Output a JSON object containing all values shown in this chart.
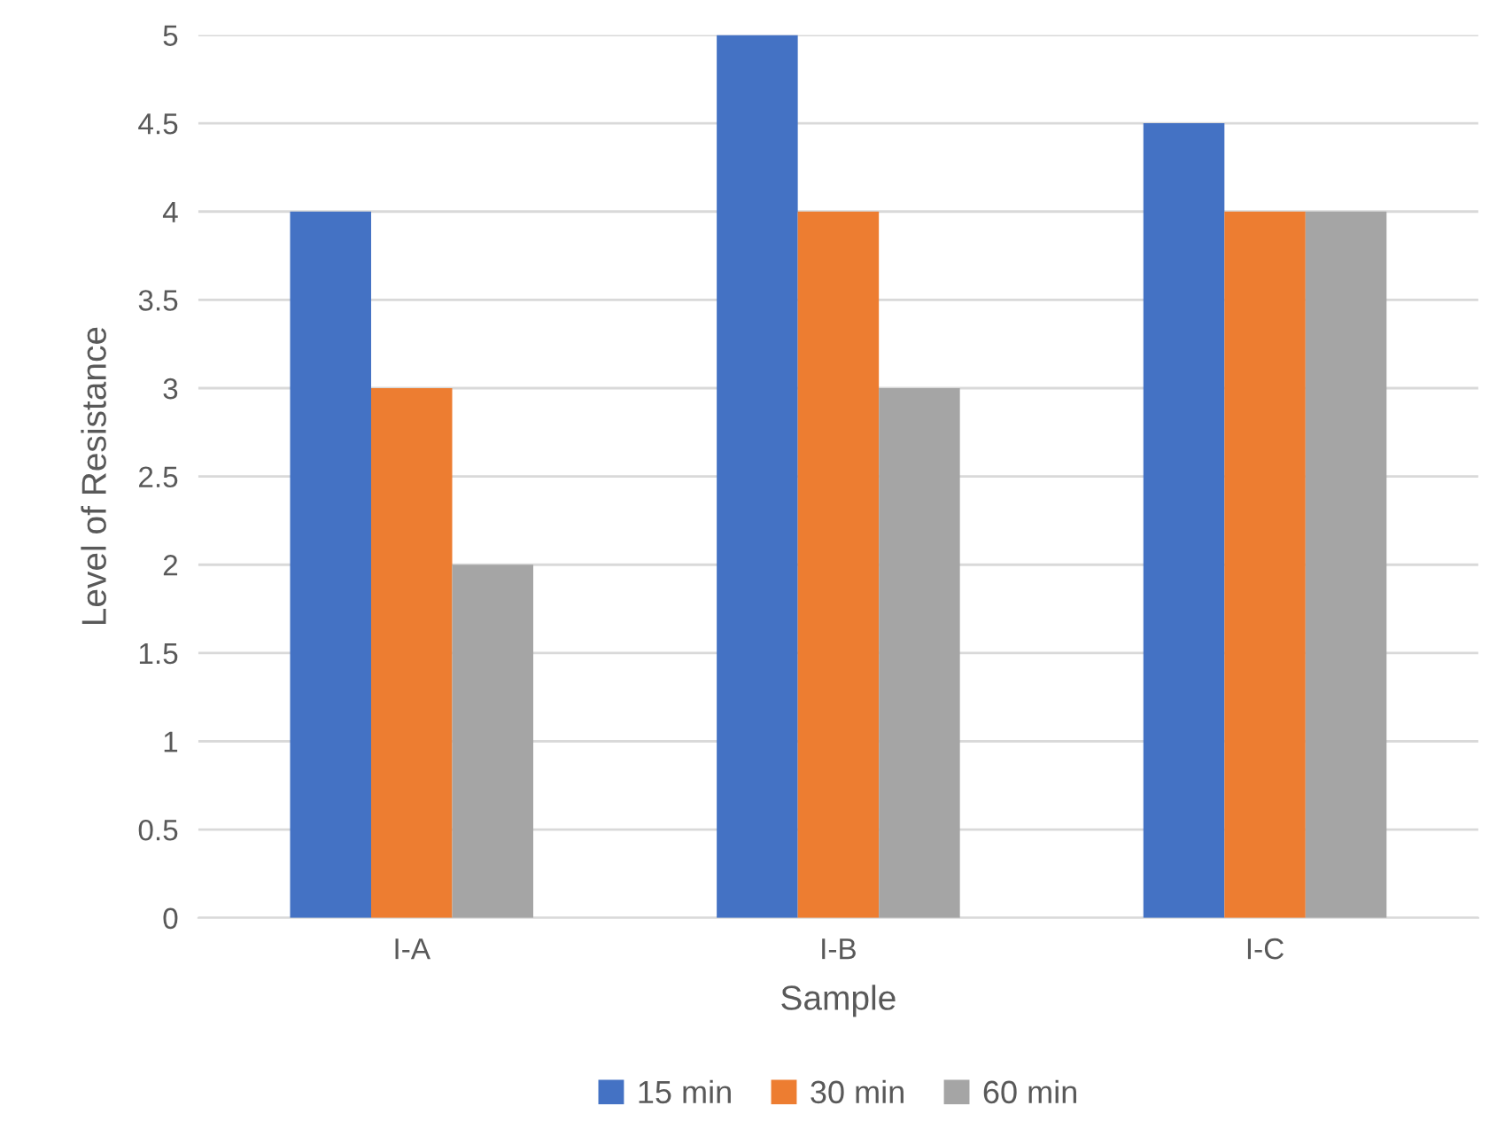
{
  "chart_data": {
    "type": "bar",
    "xlabel": "Sample",
    "ylabel": "Level of Resistance",
    "categories": [
      "I-A",
      "I-B",
      "I-C"
    ],
    "series": [
      {
        "name": "15 min",
        "color": "#4472c4",
        "values": [
          4,
          5,
          4.5
        ]
      },
      {
        "name": "30 min",
        "color": "#ed7d31",
        "values": [
          3,
          4,
          4
        ]
      },
      {
        "name": "60 min",
        "color": "#a5a5a5",
        "values": [
          2,
          3,
          4
        ]
      }
    ],
    "ylim": [
      0,
      5
    ],
    "yticks": [
      0,
      0.5,
      1,
      1.5,
      2,
      2.5,
      3,
      3.5,
      4,
      4.5,
      5
    ],
    "grid": "y",
    "legend": "bottom"
  }
}
